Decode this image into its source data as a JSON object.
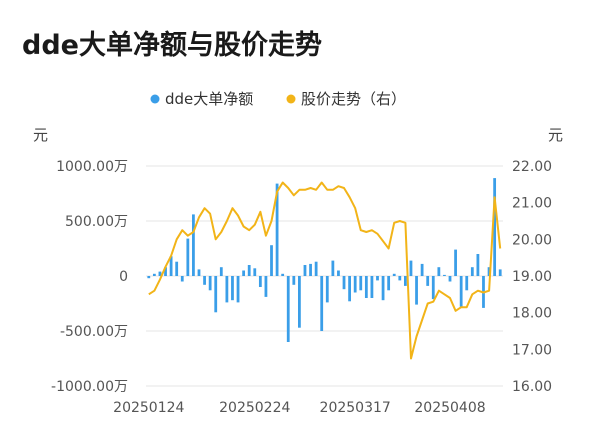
{
  "title": "dde大单净额与股价走势",
  "colors": {
    "bar": "#3a9ee8",
    "line": "#f2b418"
  },
  "legend": {
    "bar_label": "dde大单净额",
    "line_label": "股价走势（右）"
  },
  "chart_data": {
    "type": "bar+line",
    "left_axis": {
      "unit_label": "元",
      "ylim": [
        -1000,
        1000
      ],
      "ticks": [
        1000,
        500,
        0,
        -500,
        -1000
      ],
      "tick_labels": [
        "1000.00万",
        "500.00万",
        "0",
        "-500.00万",
        "-1000.00万"
      ]
    },
    "right_axis": {
      "unit_label": "元",
      "ylim": [
        16,
        22
      ],
      "ticks": [
        22,
        21,
        20,
        19,
        18,
        17,
        16
      ],
      "tick_labels": [
        "22.00",
        "21.00",
        "20.00",
        "19.00",
        "18.00",
        "17.00",
        "16.00"
      ]
    },
    "x_tick_labels": [
      {
        "index": 0,
        "label": "20250124"
      },
      {
        "index": 19,
        "label": "20250224"
      },
      {
        "index": 37,
        "label": "20250317"
      },
      {
        "index": 54,
        "label": "20250408"
      }
    ],
    "series": [
      {
        "name": "dde大单净额",
        "kind": "bar",
        "axis": "left",
        "values": [
          -20,
          20,
          40,
          80,
          180,
          130,
          -50,
          340,
          560,
          60,
          -80,
          -130,
          -330,
          80,
          -240,
          -220,
          -240,
          50,
          100,
          70,
          -100,
          -190,
          280,
          840,
          20,
          -600,
          -80,
          -470,
          100,
          110,
          130,
          -500,
          -240,
          140,
          50,
          -120,
          -230,
          -150,
          -130,
          -200,
          -200,
          -40,
          -220,
          -130,
          20,
          -40,
          -90,
          140,
          -260,
          110,
          -90,
          -210,
          80,
          10,
          -50,
          240,
          -280,
          -130,
          80,
          200,
          -290,
          80,
          890,
          60
        ]
      },
      {
        "name": "股价走势（右）",
        "kind": "line",
        "axis": "right",
        "values": [
          18.5,
          18.6,
          18.9,
          19.25,
          19.55,
          20.0,
          20.25,
          20.1,
          20.2,
          20.6,
          20.85,
          20.7,
          20.0,
          20.2,
          20.5,
          20.85,
          20.65,
          20.35,
          20.25,
          20.4,
          20.75,
          20.1,
          20.5,
          21.3,
          21.55,
          21.4,
          21.2,
          21.35,
          21.35,
          21.4,
          21.35,
          21.55,
          21.35,
          21.35,
          21.45,
          21.4,
          21.15,
          20.85,
          20.25,
          20.2,
          20.25,
          20.15,
          19.95,
          19.75,
          20.45,
          20.5,
          20.45,
          16.75,
          17.35,
          17.8,
          18.25,
          18.3,
          18.6,
          18.5,
          18.4,
          18.05,
          18.15,
          18.15,
          18.5,
          18.6,
          18.55,
          18.6,
          21.15,
          19.75
        ]
      }
    ]
  }
}
